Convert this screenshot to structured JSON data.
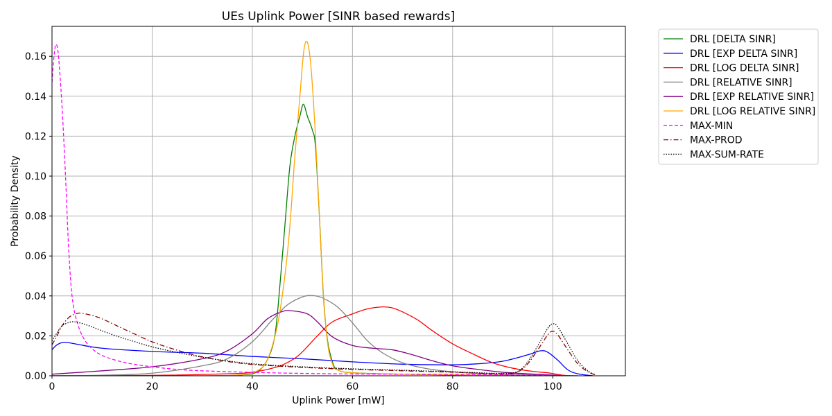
{
  "chart_data": {
    "type": "line",
    "title": "UEs Uplink Power [SINR based rewards]",
    "xlabel": "Uplink Power [mW]",
    "ylabel": "Probability Density",
    "xlim": [
      0,
      114.5
    ],
    "ylim": [
      0,
      0.175
    ],
    "xticks": [
      0,
      20,
      40,
      60,
      80,
      100
    ],
    "yticks": [
      0.0,
      0.02,
      0.04,
      0.06,
      0.08,
      0.1,
      0.12,
      0.14,
      0.16
    ],
    "grid": true,
    "legend_position": "outside-top-right",
    "series": [
      {
        "name": "DRL [DELTA SINR]",
        "color": "#008000",
        "dash": "solid",
        "points": [
          [
            0,
            0
          ],
          [
            30,
            0
          ],
          [
            38,
            0.0005
          ],
          [
            41,
            0.002
          ],
          [
            43,
            0.008
          ],
          [
            44.5,
            0.02
          ],
          [
            45.5,
            0.045
          ],
          [
            46.5,
            0.075
          ],
          [
            47.5,
            0.105
          ],
          [
            48.5,
            0.12
          ],
          [
            49.5,
            0.13
          ],
          [
            50.2,
            0.136
          ],
          [
            51,
            0.13
          ],
          [
            52,
            0.123
          ],
          [
            52.6,
            0.115
          ],
          [
            53.4,
            0.08
          ],
          [
            54.2,
            0.04
          ],
          [
            55,
            0.018
          ],
          [
            56,
            0.007
          ],
          [
            57,
            0.003
          ],
          [
            60,
            0.0015
          ],
          [
            70,
            0.0008
          ],
          [
            80,
            0.0004
          ],
          [
            100,
            0
          ],
          [
            105,
            0
          ]
        ]
      },
      {
        "name": "DRL [EXP DELTA SINR]",
        "color": "#0000ff",
        "dash": "solid",
        "points": [
          [
            0,
            0.013
          ],
          [
            1,
            0.0155
          ],
          [
            2.5,
            0.0168
          ],
          [
            5,
            0.0158
          ],
          [
            10,
            0.0138
          ],
          [
            20,
            0.0122
          ],
          [
            30,
            0.0113
          ],
          [
            40,
            0.0097
          ],
          [
            50,
            0.0085
          ],
          [
            60,
            0.007
          ],
          [
            70,
            0.0058
          ],
          [
            80,
            0.0055
          ],
          [
            85,
            0.006
          ],
          [
            90,
            0.0073
          ],
          [
            95,
            0.0105
          ],
          [
            97.5,
            0.0125
          ],
          [
            99,
            0.0118
          ],
          [
            101,
            0.0078
          ],
          [
            103,
            0.003
          ],
          [
            105,
            0.001
          ],
          [
            108,
            0
          ]
        ]
      },
      {
        "name": "DRL [LOG DELTA SINR]",
        "color": "#ff0000",
        "dash": "solid",
        "points": [
          [
            0,
            0
          ],
          [
            20,
            0.0002
          ],
          [
            35,
            0.001
          ],
          [
            40,
            0.0018
          ],
          [
            45,
            0.0045
          ],
          [
            48,
            0.008
          ],
          [
            50,
            0.012
          ],
          [
            53,
            0.02
          ],
          [
            56,
            0.027
          ],
          [
            60,
            0.031
          ],
          [
            63,
            0.0335
          ],
          [
            66,
            0.0345
          ],
          [
            68,
            0.034
          ],
          [
            70,
            0.032
          ],
          [
            73,
            0.028
          ],
          [
            76,
            0.0225
          ],
          [
            80,
            0.016
          ],
          [
            84,
            0.011
          ],
          [
            88,
            0.0065
          ],
          [
            92,
            0.0038
          ],
          [
            96,
            0.0022
          ],
          [
            99,
            0.0015
          ],
          [
            102,
            0.0003
          ],
          [
            104,
            0
          ]
        ]
      },
      {
        "name": "DRL [RELATIVE SINR]",
        "color": "#808080",
        "dash": "solid",
        "points": [
          [
            0,
            0
          ],
          [
            10,
            0.0003
          ],
          [
            20,
            0.0013
          ],
          [
            30,
            0.005
          ],
          [
            35,
            0.0085
          ],
          [
            40,
            0.017
          ],
          [
            44,
            0.028
          ],
          [
            47,
            0.0355
          ],
          [
            50,
            0.0395
          ],
          [
            52,
            0.0402
          ],
          [
            54,
            0.039
          ],
          [
            57,
            0.0345
          ],
          [
            60,
            0.0265
          ],
          [
            63,
            0.0175
          ],
          [
            66,
            0.0115
          ],
          [
            70,
            0.0065
          ],
          [
            75,
            0.0035
          ],
          [
            80,
            0.002
          ],
          [
            85,
            0.0012
          ],
          [
            95,
            0.0005
          ],
          [
            100,
            0.0002
          ],
          [
            105,
            0
          ]
        ]
      },
      {
        "name": "DRL [EXP RELATIVE SINR]",
        "color": "#800080",
        "dash": "solid",
        "points": [
          [
            0,
            0.0008
          ],
          [
            10,
            0.0025
          ],
          [
            20,
            0.0045
          ],
          [
            30,
            0.0085
          ],
          [
            35,
            0.0125
          ],
          [
            40,
            0.021
          ],
          [
            43,
            0.0285
          ],
          [
            46,
            0.0322
          ],
          [
            48,
            0.0325
          ],
          [
            51,
            0.031
          ],
          [
            53,
            0.027
          ],
          [
            56,
            0.0195
          ],
          [
            60,
            0.0152
          ],
          [
            64,
            0.0138
          ],
          [
            68,
            0.013
          ],
          [
            72,
            0.0105
          ],
          [
            76,
            0.0075
          ],
          [
            80,
            0.005
          ],
          [
            85,
            0.0032
          ],
          [
            90,
            0.0018
          ],
          [
            95,
            0.001
          ],
          [
            100,
            0.0004
          ],
          [
            103,
            0
          ]
        ]
      },
      {
        "name": "DRL [LOG RELATIVE SINR]",
        "color": "#ffa500",
        "dash": "solid",
        "points": [
          [
            0,
            0
          ],
          [
            30,
            0
          ],
          [
            38,
            0.0006
          ],
          [
            41,
            0.0025
          ],
          [
            43,
            0.008
          ],
          [
            45,
            0.025
          ],
          [
            46.5,
            0.05
          ],
          [
            47.5,
            0.075
          ],
          [
            48.5,
            0.11
          ],
          [
            49.5,
            0.14
          ],
          [
            50.3,
            0.163
          ],
          [
            51,
            0.167
          ],
          [
            51.7,
            0.155
          ],
          [
            52.5,
            0.125
          ],
          [
            53.3,
            0.085
          ],
          [
            54.1,
            0.045
          ],
          [
            55,
            0.017
          ],
          [
            56,
            0.006
          ],
          [
            57,
            0.003
          ],
          [
            60,
            0.0015
          ],
          [
            70,
            0.0008
          ],
          [
            100,
            0
          ],
          [
            105,
            0
          ]
        ]
      },
      {
        "name": "MAX-MIN",
        "color": "#ff00ff",
        "dash": "dashed",
        "points": [
          [
            0,
            0.147
          ],
          [
            0.4,
            0.16
          ],
          [
            0.8,
            0.166
          ],
          [
            1.3,
            0.16
          ],
          [
            2,
            0.135
          ],
          [
            2.7,
            0.1
          ],
          [
            3.3,
            0.065
          ],
          [
            4,
            0.04
          ],
          [
            5,
            0.027
          ],
          [
            6.5,
            0.018
          ],
          [
            8.5,
            0.0125
          ],
          [
            11,
            0.0092
          ],
          [
            15,
            0.0064
          ],
          [
            20,
            0.0045
          ],
          [
            25,
            0.0032
          ],
          [
            30,
            0.0025
          ],
          [
            40,
            0.0017
          ],
          [
            50,
            0.0012
          ],
          [
            60,
            0.0009
          ],
          [
            70,
            0.0008
          ],
          [
            80,
            0.0007
          ],
          [
            90,
            0.0005
          ],
          [
            95,
            0.0003
          ],
          [
            100,
            0.0002
          ],
          [
            104,
            0
          ]
        ]
      },
      {
        "name": "MAX-PROD",
        "color": "#8b0000",
        "dash": "dashdot",
        "points": [
          [
            0,
            0.0155
          ],
          [
            1,
            0.02
          ],
          [
            2,
            0.025
          ],
          [
            3.5,
            0.0295
          ],
          [
            5,
            0.0312
          ],
          [
            6,
            0.0313
          ],
          [
            8,
            0.0302
          ],
          [
            10,
            0.0285
          ],
          [
            13,
            0.025
          ],
          [
            16,
            0.0215
          ],
          [
            20,
            0.017
          ],
          [
            25,
            0.0128
          ],
          [
            30,
            0.0095
          ],
          [
            35,
            0.0072
          ],
          [
            40,
            0.0057
          ],
          [
            50,
            0.0042
          ],
          [
            60,
            0.0032
          ],
          [
            70,
            0.0025
          ],
          [
            80,
            0.0018
          ],
          [
            90,
            0.001
          ],
          [
            93,
            0.002
          ],
          [
            95,
            0.006
          ],
          [
            97,
            0.013
          ],
          [
            99,
            0.0205
          ],
          [
            100,
            0.0223
          ],
          [
            101,
            0.0205
          ],
          [
            103,
            0.013
          ],
          [
            105,
            0.006
          ],
          [
            107,
            0.002
          ],
          [
            108.5,
            0.0005
          ]
        ]
      },
      {
        "name": "MAX-SUM-RATE",
        "color": "#000000",
        "dash": "dotted",
        "points": [
          [
            0,
            0.0175
          ],
          [
            1,
            0.0215
          ],
          [
            2,
            0.025
          ],
          [
            3.5,
            0.0268
          ],
          [
            4.5,
            0.027
          ],
          [
            6,
            0.0262
          ],
          [
            8,
            0.0245
          ],
          [
            10,
            0.0225
          ],
          [
            13,
            0.0198
          ],
          [
            16,
            0.0175
          ],
          [
            20,
            0.0145
          ],
          [
            25,
            0.0117
          ],
          [
            30,
            0.0093
          ],
          [
            35,
            0.0075
          ],
          [
            40,
            0.006
          ],
          [
            50,
            0.0045
          ],
          [
            60,
            0.0035
          ],
          [
            70,
            0.0028
          ],
          [
            80,
            0.002
          ],
          [
            90,
            0.0012
          ],
          [
            93,
            0.0022
          ],
          [
            95,
            0.007
          ],
          [
            97,
            0.015
          ],
          [
            99,
            0.0238
          ],
          [
            100,
            0.026
          ],
          [
            101,
            0.0245
          ],
          [
            103,
            0.016
          ],
          [
            105,
            0.0075
          ],
          [
            107,
            0.0025
          ],
          [
            108.5,
            0.0005
          ]
        ]
      }
    ]
  }
}
